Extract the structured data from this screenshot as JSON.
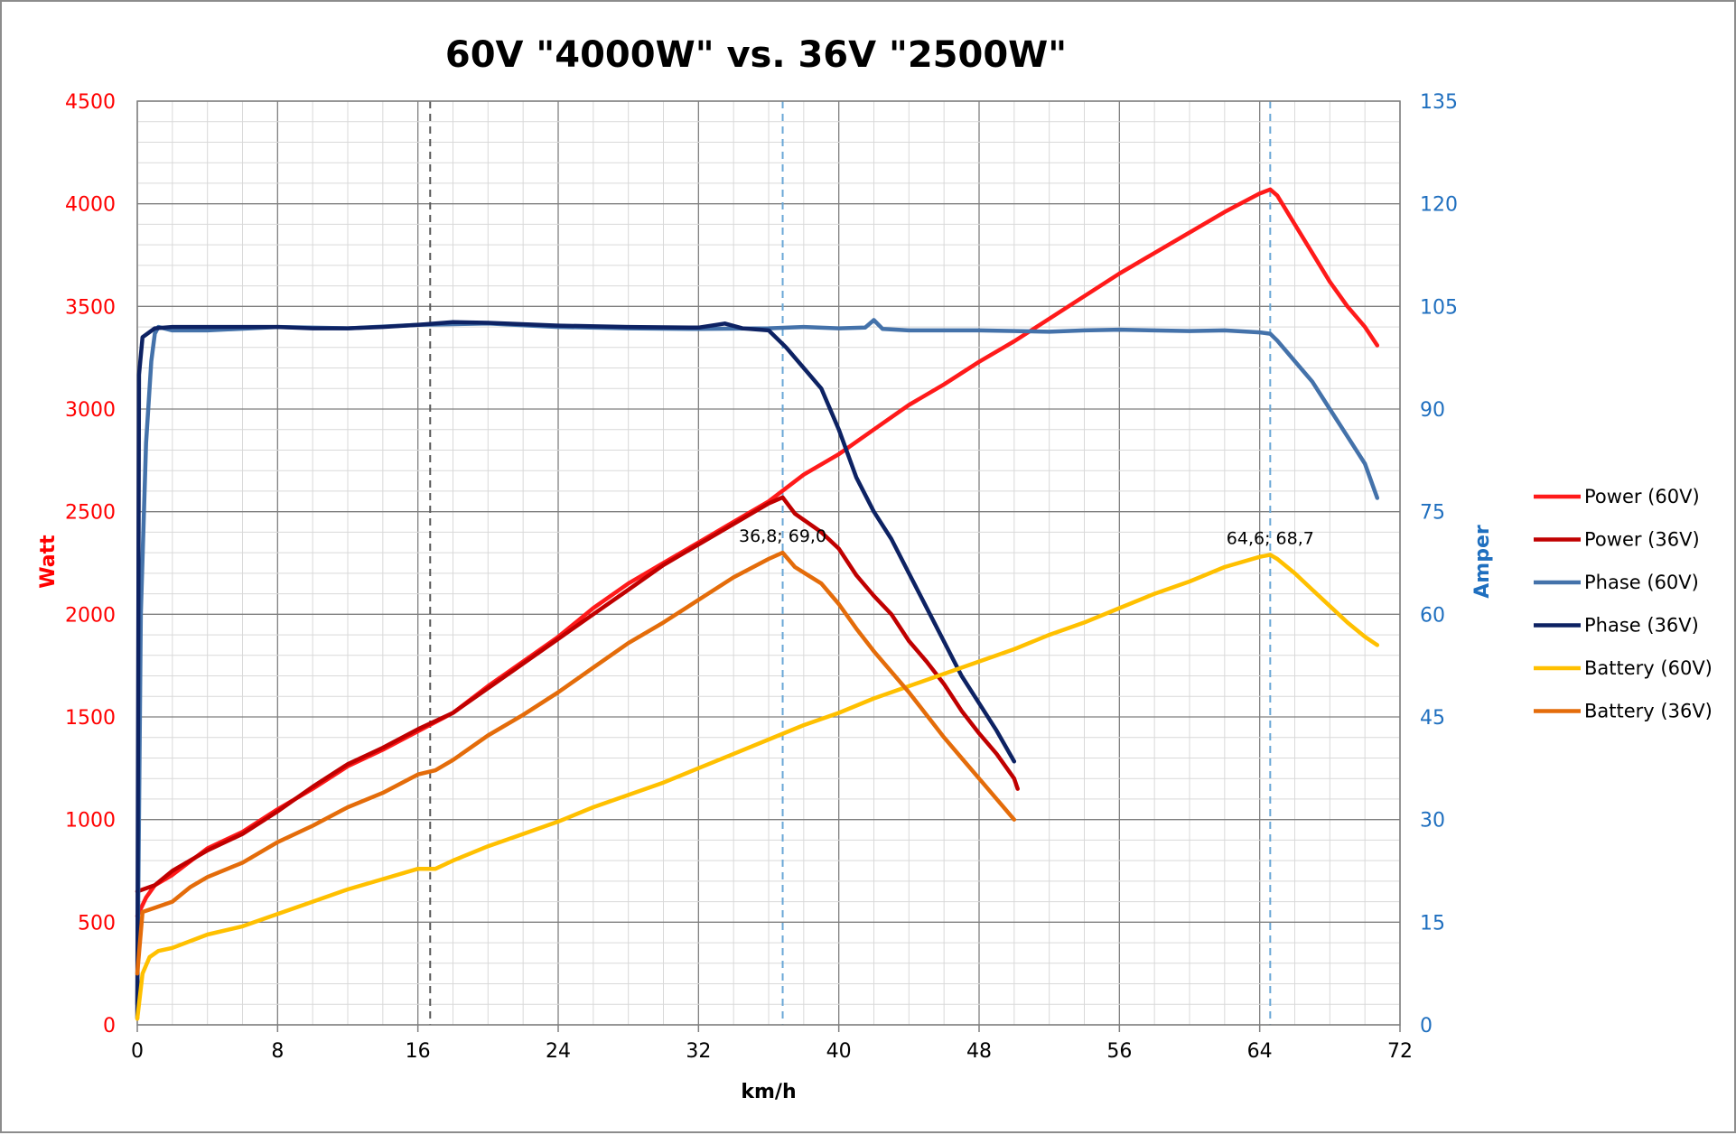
{
  "colors": {
    "power_60v": "#ff1a1a",
    "power_36v": "#c00000",
    "phase_60v": "#4472aa",
    "phase_36v": "#0d2263",
    "battery_60v": "#ffc000",
    "battery_36v": "#e46c0a",
    "left_axis": "#ff0000",
    "right_axis": "#1f6fbf",
    "grid_major": "#7f7f7f",
    "grid_minor": "#d9d9d9",
    "vline_dark": "#595959",
    "vline_blue": "#6aa7d6"
  },
  "chart_data": {
    "type": "line",
    "title": "60V \"4000W\" vs. 36V \"2500W\"",
    "xlabel": "km/h",
    "ylabel_left": "Watt",
    "ylabel_right": "Amper",
    "xlim": [
      0,
      72
    ],
    "ylim_left": [
      0,
      4500
    ],
    "ylim_right": [
      0,
      135
    ],
    "x_ticks": [
      "0",
      "8",
      "16",
      "24",
      "32",
      "40",
      "48",
      "56",
      "64",
      "72"
    ],
    "y_left_ticks": [
      "0",
      "500",
      "1000",
      "1500",
      "2000",
      "2500",
      "3000",
      "3500",
      "4000",
      "4500"
    ],
    "y_right_ticks": [
      "0",
      "15",
      "30",
      "45",
      "60",
      "75",
      "90",
      "105",
      "120",
      "135"
    ],
    "grid": true,
    "legend_position": "right",
    "vertical_lines": [
      {
        "x": 16.7,
        "style": "dashed",
        "color": "dark"
      },
      {
        "x": 36.8,
        "style": "dashed",
        "color": "blue"
      },
      {
        "x": 64.6,
        "style": "dashed",
        "color": "blue"
      }
    ],
    "annotations": [
      {
        "text": "36,8; 69,0",
        "x": 36.8,
        "y": 69.0,
        "axis": "right"
      },
      {
        "text": "64,6; 68,7",
        "x": 64.6,
        "y": 68.7,
        "axis": "right"
      }
    ],
    "series": [
      {
        "name": "Power (60V)",
        "axis": "left",
        "color_key": "power_60v",
        "points": [
          [
            0,
            530
          ],
          [
            0.5,
            620
          ],
          [
            1,
            680
          ],
          [
            2,
            730
          ],
          [
            4,
            860
          ],
          [
            6,
            940
          ],
          [
            8,
            1050
          ],
          [
            10,
            1150
          ],
          [
            12,
            1260
          ],
          [
            14,
            1340
          ],
          [
            16,
            1430
          ],
          [
            18,
            1520
          ],
          [
            20,
            1650
          ],
          [
            22,
            1770
          ],
          [
            24,
            1890
          ],
          [
            26,
            2030
          ],
          [
            28,
            2150
          ],
          [
            30,
            2250
          ],
          [
            32,
            2350
          ],
          [
            34,
            2450
          ],
          [
            36,
            2550
          ],
          [
            38,
            2680
          ],
          [
            40,
            2780
          ],
          [
            42,
            2900
          ],
          [
            44,
            3020
          ],
          [
            46,
            3120
          ],
          [
            48,
            3230
          ],
          [
            50,
            3330
          ],
          [
            52,
            3440
          ],
          [
            54,
            3550
          ],
          [
            56,
            3660
          ],
          [
            58,
            3760
          ],
          [
            60,
            3860
          ],
          [
            62,
            3960
          ],
          [
            64,
            4050
          ],
          [
            64.6,
            4070
          ],
          [
            65,
            4040
          ],
          [
            66,
            3900
          ],
          [
            67,
            3760
          ],
          [
            68,
            3620
          ],
          [
            69,
            3500
          ],
          [
            70,
            3400
          ],
          [
            70.7,
            3310
          ]
        ]
      },
      {
        "name": "Power (36V)",
        "axis": "left",
        "color_key": "power_36v",
        "points": [
          [
            0,
            650
          ],
          [
            1,
            680
          ],
          [
            2,
            750
          ],
          [
            4,
            850
          ],
          [
            6,
            930
          ],
          [
            8,
            1040
          ],
          [
            10,
            1160
          ],
          [
            12,
            1270
          ],
          [
            14,
            1350
          ],
          [
            16,
            1440
          ],
          [
            18,
            1520
          ],
          [
            20,
            1640
          ],
          [
            22,
            1760
          ],
          [
            24,
            1880
          ],
          [
            26,
            2000
          ],
          [
            28,
            2120
          ],
          [
            30,
            2240
          ],
          [
            32,
            2340
          ],
          [
            34,
            2440
          ],
          [
            36,
            2540
          ],
          [
            36.8,
            2570
          ],
          [
            37.5,
            2490
          ],
          [
            39,
            2400
          ],
          [
            40,
            2320
          ],
          [
            41,
            2190
          ],
          [
            42,
            2090
          ],
          [
            43,
            2000
          ],
          [
            44,
            1870
          ],
          [
            45,
            1770
          ],
          [
            46,
            1660
          ],
          [
            47,
            1530
          ],
          [
            48,
            1420
          ],
          [
            49,
            1320
          ],
          [
            50,
            1200
          ],
          [
            50.2,
            1150
          ]
        ]
      },
      {
        "name": "Phase (60V)",
        "axis": "right",
        "color_key": "phase_60v",
        "points": [
          [
            0,
            3
          ],
          [
            0.2,
            60
          ],
          [
            0.5,
            85
          ],
          [
            0.8,
            97
          ],
          [
            1,
            101
          ],
          [
            1.2,
            102
          ],
          [
            2,
            101.5
          ],
          [
            4,
            101.5
          ],
          [
            8,
            102
          ],
          [
            12,
            101.8
          ],
          [
            16,
            102.3
          ],
          [
            20,
            102.5
          ],
          [
            24,
            102
          ],
          [
            28,
            101.8
          ],
          [
            32,
            101.7
          ],
          [
            36,
            101.8
          ],
          [
            38,
            102
          ],
          [
            40,
            101.8
          ],
          [
            41.5,
            101.9
          ],
          [
            42,
            103
          ],
          [
            42.5,
            101.7
          ],
          [
            44,
            101.5
          ],
          [
            48,
            101.5
          ],
          [
            52,
            101.3
          ],
          [
            54,
            101.5
          ],
          [
            56,
            101.6
          ],
          [
            60,
            101.4
          ],
          [
            62,
            101.5
          ],
          [
            64,
            101.2
          ],
          [
            64.6,
            101
          ],
          [
            65,
            100
          ],
          [
            66,
            97
          ],
          [
            67,
            94
          ],
          [
            68,
            90
          ],
          [
            69,
            86
          ],
          [
            70,
            82
          ],
          [
            70.7,
            77
          ]
        ]
      },
      {
        "name": "Phase (36V)",
        "axis": "right",
        "color_key": "phase_36v",
        "points": [
          [
            0,
            1
          ],
          [
            0.1,
            95
          ],
          [
            0.3,
            100.5
          ],
          [
            1,
            101.8
          ],
          [
            2,
            102
          ],
          [
            4,
            102
          ],
          [
            6,
            102
          ],
          [
            8,
            102
          ],
          [
            10,
            101.8
          ],
          [
            12,
            101.8
          ],
          [
            14,
            102
          ],
          [
            16,
            102.3
          ],
          [
            18,
            102.7
          ],
          [
            20,
            102.6
          ],
          [
            24,
            102.2
          ],
          [
            28,
            102
          ],
          [
            32,
            101.9
          ],
          [
            33.5,
            102.5
          ],
          [
            34.5,
            101.8
          ],
          [
            36,
            101.5
          ],
          [
            37,
            99
          ],
          [
            38,
            96
          ],
          [
            39,
            93
          ],
          [
            40,
            87
          ],
          [
            41,
            80
          ],
          [
            42,
            75
          ],
          [
            43,
            71
          ],
          [
            44,
            66
          ],
          [
            45,
            61
          ],
          [
            46,
            56
          ],
          [
            47,
            51
          ],
          [
            48,
            47
          ],
          [
            49,
            43
          ],
          [
            50,
            38.5
          ]
        ]
      },
      {
        "name": "Battery (60V)",
        "axis": "left",
        "color_key": "battery_60v",
        "points": [
          [
            0,
            30
          ],
          [
            0.3,
            250
          ],
          [
            0.7,
            330
          ],
          [
            1.2,
            360
          ],
          [
            2,
            375
          ],
          [
            4,
            440
          ],
          [
            6,
            480
          ],
          [
            8,
            540
          ],
          [
            10,
            600
          ],
          [
            12,
            660
          ],
          [
            14,
            710
          ],
          [
            16,
            760
          ],
          [
            17,
            760
          ],
          [
            18,
            800
          ],
          [
            20,
            870
          ],
          [
            22,
            930
          ],
          [
            24,
            990
          ],
          [
            26,
            1060
          ],
          [
            28,
            1120
          ],
          [
            30,
            1180
          ],
          [
            32,
            1250
          ],
          [
            34,
            1320
          ],
          [
            36,
            1390
          ],
          [
            38,
            1460
          ],
          [
            40,
            1520
          ],
          [
            42,
            1590
          ],
          [
            44,
            1650
          ],
          [
            46,
            1710
          ],
          [
            48,
            1770
          ],
          [
            50,
            1830
          ],
          [
            52,
            1900
          ],
          [
            54,
            1960
          ],
          [
            56,
            2030
          ],
          [
            58,
            2100
          ],
          [
            60,
            2160
          ],
          [
            62,
            2230
          ],
          [
            64,
            2280
          ],
          [
            64.6,
            2290
          ],
          [
            65,
            2270
          ],
          [
            66,
            2200
          ],
          [
            67,
            2120
          ],
          [
            68,
            2040
          ],
          [
            69,
            1960
          ],
          [
            70,
            1890
          ],
          [
            70.7,
            1850
          ]
        ]
      },
      {
        "name": "Battery (36V)",
        "axis": "left",
        "color_key": "battery_36v",
        "points": [
          [
            0,
            250
          ],
          [
            0.3,
            550
          ],
          [
            1,
            570
          ],
          [
            2,
            600
          ],
          [
            3,
            670
          ],
          [
            4,
            720
          ],
          [
            6,
            790
          ],
          [
            8,
            890
          ],
          [
            10,
            970
          ],
          [
            12,
            1060
          ],
          [
            14,
            1130
          ],
          [
            16,
            1220
          ],
          [
            17,
            1240
          ],
          [
            18,
            1290
          ],
          [
            20,
            1410
          ],
          [
            22,
            1510
          ],
          [
            24,
            1620
          ],
          [
            26,
            1740
          ],
          [
            28,
            1860
          ],
          [
            30,
            1960
          ],
          [
            32,
            2070
          ],
          [
            34,
            2180
          ],
          [
            36,
            2270
          ],
          [
            36.8,
            2300
          ],
          [
            37.5,
            2230
          ],
          [
            39,
            2150
          ],
          [
            40,
            2050
          ],
          [
            41,
            1930
          ],
          [
            42,
            1820
          ],
          [
            43,
            1720
          ],
          [
            44,
            1620
          ],
          [
            45,
            1510
          ],
          [
            46,
            1400
          ],
          [
            47,
            1300
          ],
          [
            48,
            1200
          ],
          [
            49,
            1100
          ],
          [
            50,
            1000
          ]
        ]
      }
    ]
  }
}
